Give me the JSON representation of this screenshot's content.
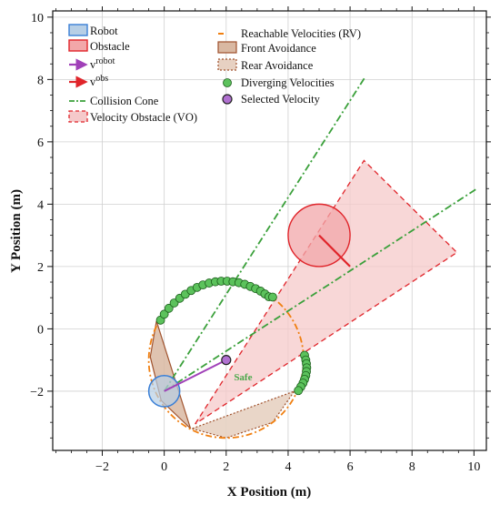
{
  "chart_data": {
    "type": "scatter",
    "xlabel": "X Position (m)",
    "ylabel": "Y Position (m)",
    "xlim": [
      -3.6,
      10.4
    ],
    "ylim": [
      -3.9,
      10.2
    ],
    "xticks": [
      -2,
      0,
      2,
      4,
      6,
      8,
      10
    ],
    "yticks": [
      -2,
      0,
      2,
      4,
      6,
      8,
      10
    ],
    "grid": true,
    "legend_position": "top-left",
    "legend": [
      "Robot",
      "Obstacle",
      "v^robot",
      "v^obs",
      "Collision Cone",
      "Velocity Obstacle (VO)",
      "Reachable Velocities (RV)",
      "Front Avoidance",
      "Rear Avoidance",
      "Diverging Velocities",
      "Selected Velocity"
    ],
    "legend_labels": {
      "robot": "Robot",
      "obstacle": "Obstacle",
      "v_robot_base": "v",
      "v_robot_sup": "robot",
      "v_obs_base": "v",
      "v_obs_sup": "obs",
      "collision_cone": "Collision Cone",
      "vo": "Velocity Obstacle (VO)",
      "rv": "Reachable Velocities (RV)",
      "front": "Front Avoidance",
      "rear": "Rear Avoidance",
      "diverging": "Diverging Velocities",
      "selected": "Selected Velocity"
    },
    "robot": {
      "center": [
        0,
        -2
      ],
      "radius": 0.5
    },
    "obstacle": {
      "center": [
        5,
        3
      ],
      "radius": 1.0
    },
    "v_robot": {
      "from": [
        0,
        -2
      ],
      "to": [
        2,
        -1
      ]
    },
    "v_obs": {
      "from": [
        5,
        3
      ],
      "to": [
        6,
        2
      ]
    },
    "collision_cone": {
      "apex": [
        0,
        -2
      ],
      "edge1_end": [
        6.5,
        8.1
      ],
      "edge2_end": [
        10.1,
        4.5
      ]
    },
    "velocity_obstacle": {
      "polygon": [
        [
          1,
          -3.05
        ],
        [
          6.45,
          5.4
        ],
        [
          9.45,
          2.45
        ]
      ]
    },
    "reachable_velocities": {
      "center": [
        2,
        -1.0
      ],
      "radius": 2.5
    },
    "front_avoidance": {
      "polygon": [
        [
          -0.25,
          0.25
        ],
        [
          -0.45,
          -0.9
        ],
        [
          -0.1,
          -2.3
        ],
        [
          0.85,
          -3.2
        ]
      ]
    },
    "rear_avoidance": {
      "polygon": [
        [
          0.9,
          -3.2
        ],
        [
          2.0,
          -3.5
        ],
        [
          3.5,
          -3.0
        ],
        [
          4.2,
          -2.0
        ]
      ]
    },
    "diverging_velocities": {
      "x": [
        -0.12,
        0.0,
        0.15,
        0.32,
        0.5,
        0.68,
        0.87,
        1.06,
        1.25,
        1.45,
        1.65,
        1.84,
        2.03,
        2.22,
        2.41,
        2.6,
        2.78,
        2.95,
        3.11,
        3.25,
        3.38,
        3.5,
        4.53,
        4.57,
        4.59,
        4.6,
        4.59,
        4.57,
        4.53,
        4.48,
        4.41,
        4.33
      ],
      "y": [
        0.28,
        0.47,
        0.66,
        0.83,
        0.98,
        1.11,
        1.23,
        1.33,
        1.41,
        1.47,
        1.51,
        1.53,
        1.53,
        1.51,
        1.48,
        1.43,
        1.36,
        1.29,
        1.21,
        1.12,
        1.03,
        1.02,
        -0.85,
        -1.0,
        -1.12,
        -1.25,
        -1.37,
        -1.5,
        -1.62,
        -1.74,
        -1.86,
        -1.98
      ]
    },
    "selected_velocity": {
      "x": 2.0,
      "y": -1.0
    },
    "annotations": [
      "Safe"
    ],
    "annotation_safe": {
      "text": "Safe",
      "x": 2.25,
      "y": -1.65
    },
    "colors": {
      "robot": "#3a7fd6",
      "robot_fill": "#b7cfe6",
      "obstacle": "#e0242a",
      "obstacle_fill": "#f2a7a9",
      "v_robot": "#a040b8",
      "v_obs": "#e0242a",
      "cone": "#3aa03a",
      "vo": "#e0242a",
      "vo_fill": "#f5c9ca",
      "rv": "#f07f10",
      "front": "#a0522d",
      "front_fill": "#d9b8a2",
      "rear": "#a0522d",
      "rear_fill": "#e7d1c2",
      "diverging": "#5cc25c",
      "diverging_edge": "#1a5d1a",
      "selected": "#b070d0",
      "safe": "#4aa84a"
    }
  }
}
